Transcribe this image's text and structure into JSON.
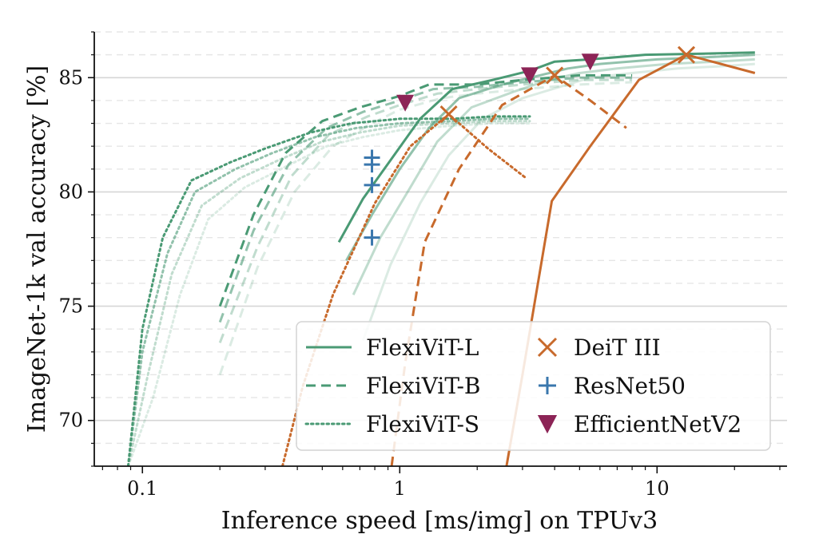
{
  "chart_data": {
    "type": "line",
    "title": "",
    "xlabel": "Inference speed [ms/img] on TPUv3",
    "ylabel": "ImageNet-1k val accuracy [%]",
    "xscale": "log",
    "xlim": [
      0.065,
      32
    ],
    "ylim": [
      68,
      87
    ],
    "xticks": [
      0.1,
      1,
      10
    ],
    "xtick_labels": [
      "0.1",
      "1",
      "10"
    ],
    "yticks": [
      70,
      75,
      80,
      85
    ],
    "ytick_labels": [
      "70",
      "75",
      "80",
      "85"
    ],
    "grid": "horizontal major and dashed minor",
    "legend_position": "lower-right",
    "colors": {
      "flexivit": "#4a9a74",
      "deit": "#c86a2c",
      "resnet": "#3a77ad",
      "efficientnet": "#8c2456"
    },
    "series": [
      {
        "name": "FlexiViT-L",
        "kind": "flexivit",
        "style": "solid",
        "opacity": 1.0,
        "x": [
          0.58,
          0.72,
          0.95,
          1.2,
          1.6,
          2.3,
          3.2,
          4.0,
          5.5,
          9.0,
          15,
          24
        ],
        "y": [
          77.8,
          79.7,
          81.6,
          83.2,
          84.5,
          84.9,
          85.3,
          85.7,
          85.8,
          86.0,
          86.05,
          86.1
        ]
      },
      {
        "name": "",
        "kind": "flexivit",
        "style": "solid",
        "opacity": 0.6,
        "x": [
          0.62,
          0.78,
          1.0,
          1.3,
          1.7,
          2.5,
          3.5,
          4.5,
          6.0,
          10,
          16,
          24
        ],
        "y": [
          77.0,
          79.0,
          81.0,
          82.8,
          84.1,
          84.7,
          85.1,
          85.4,
          85.6,
          85.8,
          85.9,
          86.0
        ]
      },
      {
        "name": "",
        "kind": "flexivit",
        "style": "solid",
        "opacity": 0.35,
        "x": [
          0.66,
          0.84,
          1.1,
          1.4,
          1.9,
          2.8,
          3.8,
          5.0,
          7.0,
          11,
          17,
          24
        ],
        "y": [
          75.5,
          78.0,
          80.2,
          82.2,
          83.7,
          84.4,
          84.9,
          85.2,
          85.4,
          85.6,
          85.7,
          85.8
        ]
      },
      {
        "name": "",
        "kind": "flexivit",
        "style": "solid",
        "opacity": 0.2,
        "x": [
          0.72,
          0.92,
          1.2,
          1.55,
          2.1,
          3.0,
          4.2,
          5.5,
          8.0,
          12,
          18,
          24
        ],
        "y": [
          73.5,
          76.8,
          79.5,
          81.6,
          83.2,
          84.1,
          84.6,
          85.0,
          85.2,
          85.4,
          85.5,
          85.6
        ]
      },
      {
        "name": "FlexiViT-B",
        "kind": "flexivit",
        "style": "dashed",
        "opacity": 1.0,
        "x": [
          0.2,
          0.27,
          0.36,
          0.5,
          0.7,
          1.0,
          1.3,
          2.0,
          3.0,
          5.0,
          8.0
        ],
        "y": [
          75.0,
          79.0,
          81.7,
          83.1,
          83.7,
          84.2,
          84.7,
          84.7,
          84.9,
          85.1,
          85.1
        ]
      },
      {
        "name": "",
        "kind": "flexivit",
        "style": "dashed",
        "opacity": 0.6,
        "x": [
          0.2,
          0.27,
          0.37,
          0.52,
          0.72,
          1.0,
          1.35,
          2.0,
          3.0,
          5.0,
          8.0
        ],
        "y": [
          74.3,
          78.3,
          81.2,
          82.8,
          83.5,
          84.0,
          84.5,
          84.6,
          84.8,
          85.0,
          85.0
        ]
      },
      {
        "name": "",
        "kind": "flexivit",
        "style": "dashed",
        "opacity": 0.35,
        "x": [
          0.2,
          0.28,
          0.38,
          0.53,
          0.75,
          1.0,
          1.4,
          2.0,
          3.0,
          5.0,
          8.0
        ],
        "y": [
          73.4,
          77.6,
          80.7,
          82.5,
          83.3,
          83.8,
          84.3,
          84.5,
          84.7,
          84.9,
          84.9
        ]
      },
      {
        "name": "",
        "kind": "flexivit",
        "style": "dashed",
        "opacity": 0.2,
        "x": [
          0.2,
          0.28,
          0.39,
          0.55,
          0.78,
          1.0,
          1.45,
          2.0,
          3.0,
          5.0,
          8.0
        ],
        "y": [
          72.0,
          76.7,
          80.0,
          82.0,
          83.0,
          83.6,
          84.1,
          84.3,
          84.5,
          84.7,
          84.8
        ]
      },
      {
        "name": "FlexiViT-S",
        "kind": "flexivit",
        "style": "dotted",
        "opacity": 1.0,
        "x": [
          0.088,
          0.1,
          0.12,
          0.155,
          0.22,
          0.3,
          0.45,
          0.65,
          1.0,
          1.6,
          2.3,
          3.2
        ],
        "y": [
          68.0,
          74.0,
          78.0,
          80.5,
          81.3,
          81.9,
          82.6,
          83.0,
          83.2,
          83.2,
          83.3,
          83.3
        ]
      },
      {
        "name": "",
        "kind": "flexivit",
        "style": "dotted",
        "opacity": 0.6,
        "x": [
          0.088,
          0.1,
          0.125,
          0.16,
          0.23,
          0.32,
          0.47,
          0.68,
          1.0,
          1.6,
          2.3,
          3.2
        ],
        "y": [
          68.0,
          73.0,
          77.3,
          80.0,
          81.0,
          81.7,
          82.4,
          82.8,
          83.0,
          83.1,
          83.2,
          83.2
        ]
      },
      {
        "name": "",
        "kind": "flexivit",
        "style": "dotted",
        "opacity": 0.35,
        "x": [
          0.088,
          0.105,
          0.13,
          0.17,
          0.24,
          0.34,
          0.5,
          0.7,
          1.0,
          1.6,
          2.3,
          3.2
        ],
        "y": [
          68.0,
          72.0,
          76.4,
          79.4,
          80.6,
          81.4,
          82.2,
          82.6,
          82.9,
          83.0,
          83.1,
          83.1
        ]
      },
      {
        "name": "",
        "kind": "flexivit",
        "style": "dotted",
        "opacity": 0.2,
        "x": [
          0.088,
          0.11,
          0.14,
          0.18,
          0.25,
          0.36,
          0.52,
          0.72,
          1.0,
          1.6,
          2.3,
          3.2
        ],
        "y": [
          68.0,
          71.0,
          75.5,
          78.8,
          80.2,
          81.1,
          82.0,
          82.4,
          82.7,
          82.9,
          83.0,
          83.0
        ]
      },
      {
        "name": "",
        "kind": "deit",
        "style": "dotted",
        "opacity": 1.0,
        "x": [
          0.35,
          0.42,
          0.55,
          0.8,
          1.1,
          1.55,
          2.2,
          3.1
        ],
        "y": [
          68.0,
          71.5,
          75.5,
          79.5,
          82.0,
          83.4,
          81.9,
          80.6
        ]
      },
      {
        "name": "",
        "kind": "deit",
        "style": "dashed",
        "opacity": 1.0,
        "x": [
          0.93,
          1.05,
          1.25,
          1.7,
          2.5,
          4.0,
          5.5,
          7.6
        ],
        "y": [
          68.0,
          72.5,
          77.8,
          81.0,
          83.8,
          85.1,
          84.0,
          82.8
        ]
      },
      {
        "name": "",
        "kind": "deit",
        "style": "solid",
        "opacity": 1.0,
        "x": [
          2.6,
          3.0,
          3.9,
          5.5,
          8.5,
          13.0,
          24
        ],
        "y": [
          68.0,
          72.0,
          79.6,
          82.0,
          84.9,
          86.0,
          85.2
        ]
      }
    ],
    "markers": [
      {
        "name": "DeiT III",
        "symbol": "x",
        "kind": "deit",
        "x": [
          1.55,
          4.0,
          13.0
        ],
        "y": [
          83.4,
          85.1,
          86.0
        ]
      },
      {
        "name": "ResNet50",
        "symbol": "+",
        "kind": "resnet",
        "x": [
          0.78,
          0.78,
          0.78,
          0.78
        ],
        "y": [
          81.5,
          81.2,
          80.3,
          78.0
        ]
      },
      {
        "name": "EfficientNetV2",
        "symbol": "v",
        "kind": "efficientnet",
        "x": [
          1.05,
          3.2,
          5.5
        ],
        "y": [
          83.9,
          85.1,
          85.7
        ]
      }
    ],
    "legend": [
      {
        "label": "FlexiViT-L",
        "symbol": "line-solid",
        "kind": "flexivit"
      },
      {
        "label": "FlexiViT-B",
        "symbol": "line-dashed",
        "kind": "flexivit"
      },
      {
        "label": "FlexiViT-S",
        "symbol": "line-dotted",
        "kind": "flexivit"
      },
      {
        "label": "DeiT III",
        "symbol": "x",
        "kind": "deit"
      },
      {
        "label": "ResNet50",
        "symbol": "+",
        "kind": "resnet"
      },
      {
        "label": "EfficientNetV2",
        "symbol": "v",
        "kind": "efficientnet"
      }
    ]
  }
}
